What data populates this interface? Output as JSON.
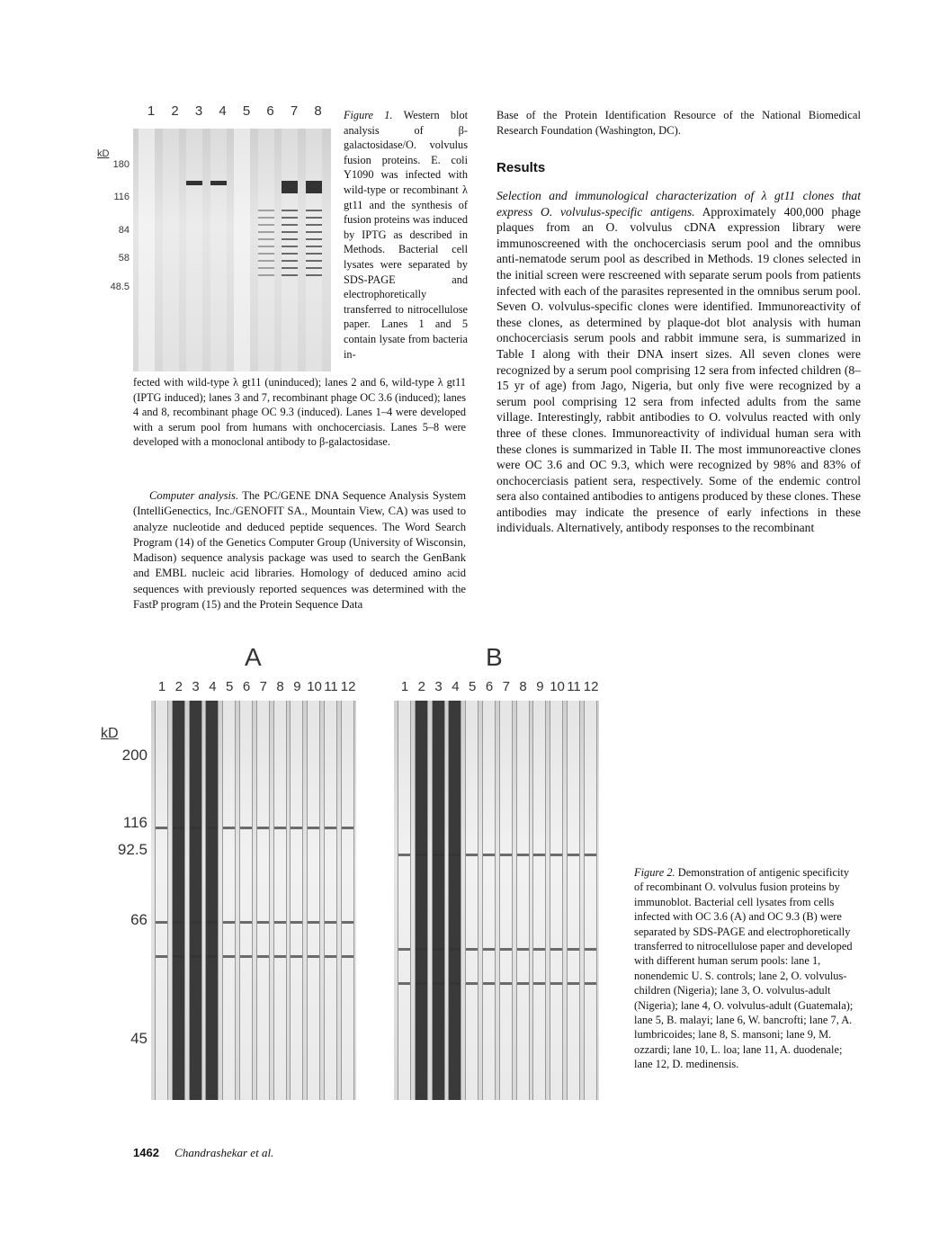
{
  "figure1": {
    "lanes": [
      "1",
      "2",
      "3",
      "4",
      "5",
      "6",
      "7",
      "8"
    ],
    "unit": "kD",
    "markers": [
      "180",
      "116",
      "84",
      "58",
      "48.5"
    ],
    "caption_label": "Figure 1.",
    "caption_side": "Western blot analysis of β-galactosidase/O. volvulus fusion proteins. E. coli Y1090 was infected with wild-type or recombinant λ gt11 and the synthesis of fusion proteins was induced by IPTG as described in Methods. Bacterial cell lysates were separated by SDS-PAGE and electrophoretically transferred to nitrocellulose paper. Lanes 1 and 5 contain lysate from bacteria in-",
    "caption_full": "fected with wild-type λ gt11 (uninduced); lanes 2 and 6, wild-type λ gt11 (IPTG induced); lanes 3 and 7, recombinant phage OC 3.6 (induced); lanes 4 and 8, recombinant phage OC 9.3 (induced). Lanes 1–4 were developed with a serum pool from humans with onchocerciasis. Lanes 5–8 were developed with a monoclonal antibody to β-galactosidase."
  },
  "left_text": {
    "heading": "Computer analysis.",
    "paragraph": "The PC/GENE DNA Sequence Analysis System (IntelliGenectics, Inc./GENOFIT SA., Mountain View, CA) was used to analyze nucleotide and deduced peptide sequences. The Word Search Program (14) of the Genetics Computer Group (University of Wisconsin, Madison) sequence analysis package was used to search the GenBank and EMBL nucleic acid libraries. Homology of deduced amino acid sequences with previously reported sequences was determined with the FastP program (15) and the Protein Sequence Data"
  },
  "right_text": {
    "continuation": "Base of the Protein Identification Resource of the National Biomedical Research Foundation (Washington, DC).",
    "section_heading": "Results",
    "subheading": "Selection and immunological characterization of λ gt11 clones that express O. volvulus-specific antigens.",
    "paragraph": "Approximately 400,000 phage plaques from an O. volvulus cDNA expression library were immunoscreened with the onchocerciasis serum pool and the omnibus anti-nematode serum pool as described in Methods. 19 clones selected in the initial screen were rescreened with separate serum pools from patients infected with each of the parasites represented in the omnibus serum pool. Seven O. volvulus-specific clones were identified. Immunoreactivity of these clones, as determined by plaque-dot blot analysis with human onchocerciasis serum pools and rabbit immune sera, is summarized in Table I along with their DNA insert sizes. All seven clones were recognized by a serum pool comprising 12 sera from infected children (8–15 yr of age) from Jago, Nigeria, but only five were recognized by a serum pool comprising 12 sera from infected adults from the same village. Interestingly, rabbit antibodies to O. volvulus reacted with only three of these clones. Immunoreactivity of individual human sera with these clones is summarized in Table II. The most immunoreactive clones were OC 3.6 and OC 9.3, which were recognized by 98% and 83% of onchocerciasis patient sera, respectively. Some of the endemic control sera also contained antibodies to antigens produced by these clones. These antibodies may indicate the presence of early infections in these individuals. Alternatively, antibody responses to the recombinant"
  },
  "figure2": {
    "panel_a": "A",
    "panel_b": "B",
    "lanes": [
      "1",
      "2",
      "3",
      "4",
      "5",
      "6",
      "7",
      "8",
      "9",
      "10",
      "11",
      "12"
    ],
    "unit": "kD",
    "markers": [
      "200",
      "116",
      "92.5",
      "66",
      "45"
    ],
    "caption_label": "Figure 2.",
    "caption": "Demonstration of antigenic specificity of recombinant O. volvulus fusion proteins by immunoblot. Bacterial cell lysates from cells infected with OC 3.6 (A) and OC 9.3 (B) were separated by SDS-PAGE and electrophoretically transferred to nitrocellulose paper and developed with different human serum pools: lane 1, nonendemic U. S. controls; lane 2, O. volvulus-children (Nigeria); lane 3, O. volvulus-adult (Nigeria); lane 4, O. volvulus-adult (Guatemala); lane 5, B. malayi; lane 6, W. bancrofti; lane 7, A. lumbricoides; lane 8, S. mansoni; lane 9, M. ozzardi; lane 10, L. loa; lane 11, A. duodenale; lane 12, D. medinensis."
  },
  "footer": {
    "page_number": "1462",
    "authors": "Chandrashekar et al."
  }
}
